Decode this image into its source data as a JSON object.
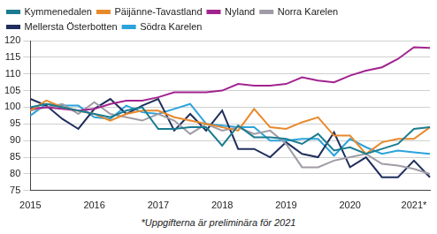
{
  "chart_data": {
    "type": "line",
    "footnote": "*Uppgifterna är preliminära för 2021",
    "categories": [
      "2015",
      null,
      null,
      null,
      "2016",
      null,
      null,
      null,
      "2017",
      null,
      null,
      null,
      "2018",
      null,
      null,
      null,
      "2019",
      null,
      null,
      null,
      "2020",
      null,
      null,
      null,
      "2021*",
      null
    ],
    "series": [
      {
        "name": "Kymmenedalen",
        "color": "#1b7c91",
        "values": [
          100,
          101,
          100,
          99,
          98,
          97,
          99,
          100,
          93.5,
          93.5,
          94,
          94,
          88.5,
          94.5,
          91,
          91,
          90.5,
          89,
          92,
          87,
          88,
          86,
          87.5,
          89,
          93.5,
          94
        ]
      },
      {
        "name": "Päijänne-Tavastland",
        "color": "#e8892b",
        "values": [
          99,
          102,
          100,
          99,
          98,
          96,
          98,
          99,
          99,
          97,
          96,
          95,
          94,
          93,
          99.5,
          94,
          93.5,
          95.5,
          97,
          91.5,
          91.5,
          86,
          89.5,
          90.5,
          90.5,
          94
        ]
      },
      {
        "name": "Nyland",
        "color": "#a2238f",
        "values": [
          99.5,
          100,
          99.5,
          99,
          99.5,
          101,
          102,
          102,
          103,
          104.5,
          104.5,
          104.5,
          105,
          107,
          106.5,
          106.5,
          107,
          109,
          108,
          107.5,
          109.5,
          111,
          112,
          114.5,
          118,
          117.8
        ]
      },
      {
        "name": "Norra Karelen",
        "color": "#a09ba6",
        "values": [
          99,
          100,
          101,
          98,
          101.5,
          98,
          97,
          96,
          98,
          96,
          92,
          95,
          93,
          94,
          92,
          93,
          89,
          82,
          82,
          84,
          85,
          86,
          83,
          82.5,
          81.5,
          80
        ]
      },
      {
        "name": "Mellersta Österbotten",
        "color": "#1f2e5c",
        "values": [
          102.5,
          100.5,
          96.5,
          93.5,
          99.5,
          102.5,
          98,
          100.5,
          102.5,
          93,
          98,
          93,
          99,
          87.5,
          87.5,
          85,
          89.5,
          86,
          85,
          92.5,
          82,
          85,
          79,
          79,
          84,
          79
        ]
      },
      {
        "name": "Södra Karelen",
        "color": "#2ba3dc",
        "values": [
          97.5,
          101,
          100.5,
          100.5,
          97,
          96.5,
          100.5,
          98.5,
          98,
          99.5,
          101,
          95,
          94.5,
          94,
          94,
          90,
          90,
          90.5,
          90.5,
          85.5,
          90.5,
          88,
          86,
          87,
          86.5,
          86
        ]
      }
    ],
    "ylim": [
      75,
      120
    ],
    "yticks": [
      75,
      80,
      85,
      90,
      95,
      100,
      105,
      110,
      115,
      120
    ],
    "grid": true,
    "legend": "upper left"
  }
}
